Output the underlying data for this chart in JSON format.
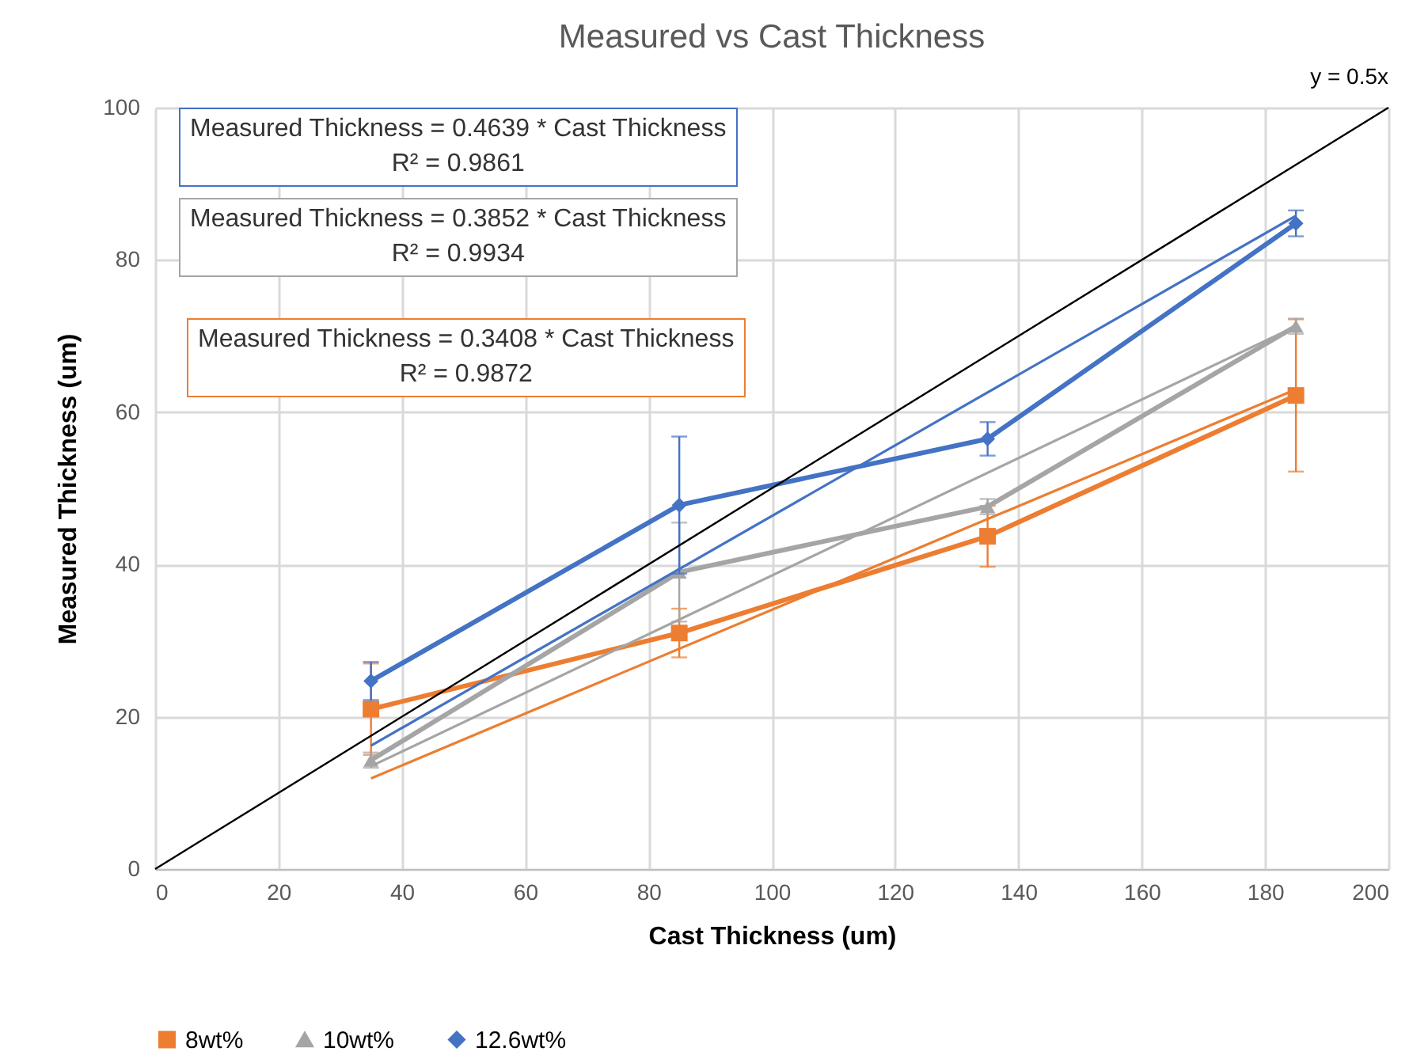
{
  "chart_data": {
    "type": "line",
    "title": "Measured vs Cast Thickness",
    "xlabel": "Cast Thickness (um)",
    "ylabel": "Measured Thickness (um)",
    "x": [
      35,
      85,
      135,
      185
    ],
    "series": [
      {
        "name": "8wt%",
        "color": "#ed7d31",
        "marker": "square",
        "values": [
          21,
          31,
          43.7,
          62.2
        ],
        "errors": [
          6,
          3.2,
          4,
          10
        ]
      },
      {
        "name": "10wt%",
        "color": "#a5a5a5",
        "marker": "triangle",
        "values": [
          14.3,
          39,
          47.6,
          71.3
        ],
        "errors": [
          1,
          6.5,
          1,
          1
        ]
      },
      {
        "name": "12.6wt%",
        "color": "#4472c4",
        "marker": "diamond",
        "values": [
          24.7,
          47.8,
          56.5,
          84.8
        ],
        "errors": [
          2.5,
          9,
          2.2,
          1.7
        ]
      },
      {
        "color": "#4472c4",
        "marker": "none",
        "x": [
          35,
          185
        ],
        "values": [
          16.2,
          85.8
        ]
      },
      {
        "color": "#a5a5a5",
        "marker": "none",
        "x": [
          35,
          185
        ],
        "values": [
          13.5,
          71.3
        ]
      },
      {
        "color": "#ed7d31",
        "marker": "none",
        "x": [
          35,
          185
        ],
        "values": [
          11.9,
          63
        ]
      },
      {
        "color": "#000000",
        "marker": "none",
        "x": [
          0,
          200
        ],
        "values": [
          0,
          100
        ]
      }
    ],
    "annotations": [
      "Measured Thickness = 0.4639 * Cast Thickness\nR² = 0.9861",
      "Measured Thickness = 0.3852 * Cast Thickness\nR² = 0.9934",
      "Measured Thickness = 0.3408 * Cast Thickness\nR² = 0.9872",
      {
        "text": "y = 0.5x",
        "x": 200,
        "y": 100
      }
    ],
    "xlim": [
      0,
      200
    ],
    "xticks": [
      0,
      20,
      40,
      60,
      80,
      100,
      120,
      140,
      160,
      180,
      200
    ],
    "ylim": [
      0,
      100
    ],
    "yticks": [
      0,
      20,
      40,
      60,
      80,
      100
    ],
    "grid": true,
    "legend": "bottom"
  }
}
